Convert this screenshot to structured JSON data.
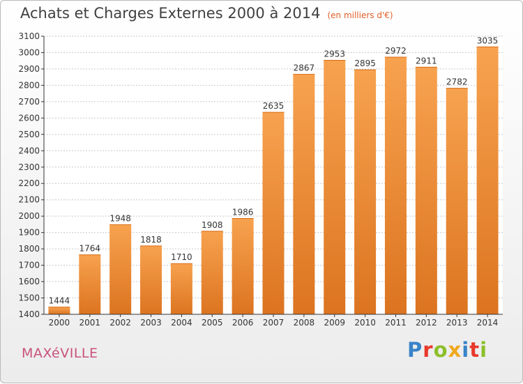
{
  "header": {
    "title": "Achats et Charges Externes 2000 à 2014",
    "unit": "(en milliers d'€)"
  },
  "footer": {
    "city": "MAXéVILLE",
    "brand": "Proxiti",
    "brand_colors": [
      "#3a84c8",
      "#e8392c",
      "#8cbf2a",
      "#f0a81f",
      "#3a84c8",
      "#e8392c",
      "#8cbf2a"
    ]
  },
  "colors": {
    "bar_top": "#f7a24f",
    "bar_bottom": "#dc7420",
    "grid": "#c9c9c9",
    "axis": "#333333"
  },
  "chart_data": {
    "type": "bar",
    "title": "Achats et Charges Externes 2000 à 2014",
    "subtitle": "(en milliers d'€)",
    "categories": [
      "2000",
      "2001",
      "2002",
      "2003",
      "2004",
      "2005",
      "2006",
      "2007",
      "2008",
      "2009",
      "2010",
      "2011",
      "2012",
      "2013",
      "2014"
    ],
    "values": [
      1444,
      1764,
      1948,
      1818,
      1710,
      1908,
      1986,
      2635,
      2867,
      2953,
      2895,
      2972,
      2911,
      2782,
      3035
    ],
    "ylim": [
      1400,
      3100
    ],
    "yticks": [
      1400,
      1500,
      1600,
      1700,
      1800,
      1900,
      2000,
      2100,
      2200,
      2300,
      2400,
      2500,
      2600,
      2700,
      2800,
      2900,
      3000,
      3100
    ],
    "grid": true,
    "data_labels": true
  }
}
